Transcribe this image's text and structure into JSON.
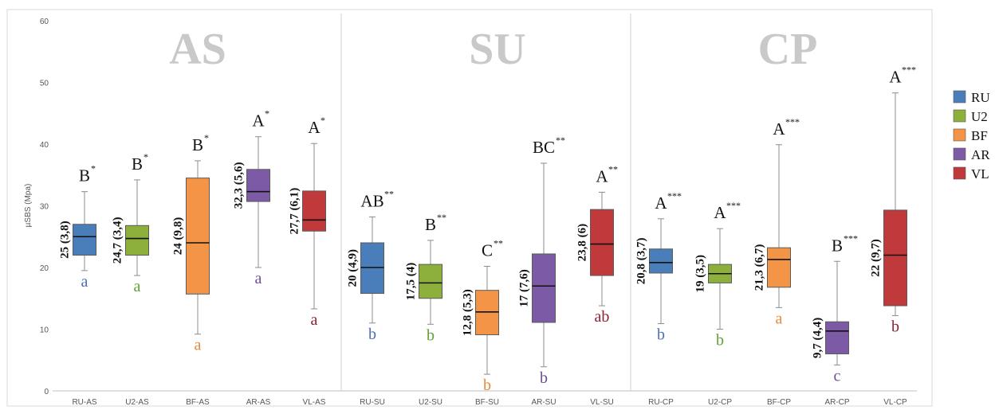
{
  "chart_data": {
    "type": "boxplot",
    "ylabel": "µSBS (Mpa)",
    "ylim": [
      0,
      60
    ],
    "yticks": [
      0,
      10,
      20,
      30,
      40,
      50,
      60
    ],
    "groups": [
      "AS",
      "SU",
      "CP"
    ],
    "legend": {
      "placement": "right",
      "entries": [
        {
          "name": "RU",
          "color": "#4a7ebb"
        },
        {
          "name": "U2",
          "color": "#8db03d"
        },
        {
          "name": "BF",
          "color": "#f39447"
        },
        {
          "name": "AR",
          "color": "#7d5aa6"
        },
        {
          "name": "VL",
          "color": "#c0393b"
        }
      ]
    },
    "boxes": [
      {
        "label": "RU-AS",
        "color": "#4a7ebb",
        "whisker_low": 19.5,
        "q1": 22,
        "median": 25,
        "q3": 27,
        "whisker_high": 32.3,
        "stat": "25 (3,8)",
        "upper_letter": "B",
        "stars": "*",
        "lower_letter": "a",
        "lower_color": "#4a6fb8"
      },
      {
        "label": "U2-AS",
        "color": "#8db03d",
        "whisker_low": 18.7,
        "q1": 22,
        "median": 24.7,
        "q3": 26.8,
        "whisker_high": 34.2,
        "stat": "24,7 (3,4)",
        "upper_letter": "B",
        "stars": "*",
        "lower_letter": "a",
        "lower_color": "#5fa133"
      },
      {
        "label": "BF-AS",
        "color": "#f39447",
        "whisker_low": 9.2,
        "q1": 15.7,
        "median": 24,
        "q3": 34.5,
        "whisker_high": 37.3,
        "stat": "24 (9,8)",
        "upper_letter": "B",
        "stars": "*",
        "lower_letter": "a",
        "lower_color": "#e88a3a"
      },
      {
        "label": "AR-AS",
        "color": "#7d5aa6",
        "whisker_low": 20,
        "q1": 30.7,
        "median": 32.3,
        "q3": 35.9,
        "whisker_high": 41.2,
        "stat": "32,3 (5,6)",
        "upper_letter": "A",
        "stars": "*",
        "lower_letter": "a",
        "lower_color": "#6d4f94"
      },
      {
        "label": "VL-AS",
        "color": "#c0393b",
        "whisker_low": 13.3,
        "q1": 25.9,
        "median": 27.7,
        "q3": 32.4,
        "whisker_high": 40.1,
        "stat": "27,7 (6,1)",
        "upper_letter": "A",
        "stars": "*",
        "lower_letter": "a",
        "lower_color": "#8b2332"
      },
      {
        "label": "RU-SU",
        "color": "#4a7ebb",
        "whisker_low": 11,
        "q1": 15.8,
        "median": 20,
        "q3": 24,
        "whisker_high": 28.2,
        "stat": "20 (4,9)",
        "upper_letter": "AB",
        "stars": "**",
        "lower_letter": "b",
        "lower_color": "#4a6fb8"
      },
      {
        "label": "U2-SU",
        "color": "#8db03d",
        "whisker_low": 10.8,
        "q1": 15,
        "median": 17.5,
        "q3": 20.5,
        "whisker_high": 24.4,
        "stat": "17,5 (4)",
        "upper_letter": "B",
        "stars": "**",
        "lower_letter": "b",
        "lower_color": "#5fa133"
      },
      {
        "label": "BF-SU",
        "color": "#f39447",
        "whisker_low": 2.7,
        "q1": 9.1,
        "median": 12.8,
        "q3": 16.3,
        "whisker_high": 20.2,
        "stat": "12,8 (5,3)",
        "upper_letter": "C",
        "stars": "**",
        "lower_letter": "b",
        "lower_color": "#e88a3a"
      },
      {
        "label": "AR-SU",
        "color": "#7d5aa6",
        "whisker_low": 3.9,
        "q1": 11.1,
        "median": 17,
        "q3": 22.2,
        "whisker_high": 36.9,
        "stat": "17 (7,6)",
        "upper_letter": "BC",
        "stars": "**",
        "lower_letter": "b",
        "lower_color": "#6d4f94"
      },
      {
        "label": "VL-SU",
        "color": "#c0393b",
        "whisker_low": 13.8,
        "q1": 18.7,
        "median": 23.8,
        "q3": 29.4,
        "whisker_high": 32.2,
        "stat": "23,8 (6)",
        "upper_letter": "A",
        "stars": "**",
        "lower_letter": "ab",
        "lower_color": "#8b2332"
      },
      {
        "label": "RU-CP",
        "color": "#4a7ebb",
        "whisker_low": 10.9,
        "q1": 19.1,
        "median": 20.8,
        "q3": 23,
        "whisker_high": 27.9,
        "stat": "20,8 (3,7)",
        "upper_letter": "A",
        "stars": "***",
        "lower_letter": "b",
        "lower_color": "#4a6fb8"
      },
      {
        "label": "U2-CP",
        "color": "#8db03d",
        "whisker_low": 10,
        "q1": 17.5,
        "median": 19,
        "q3": 20.5,
        "whisker_high": 26.3,
        "stat": "19 (3,5)",
        "upper_letter": "A",
        "stars": "***",
        "lower_letter": "b",
        "lower_color": "#5fa133"
      },
      {
        "label": "BF-CP",
        "color": "#f39447",
        "whisker_low": 13.5,
        "q1": 16.8,
        "median": 21.3,
        "q3": 23.2,
        "whisker_high": 39.9,
        "stat": "21,3 (6,7)",
        "upper_letter": "A",
        "stars": "***",
        "lower_letter": "a",
        "lower_color": "#e88a3a"
      },
      {
        "label": "AR-CP",
        "color": "#7d5aa6",
        "whisker_low": 4.2,
        "q1": 6,
        "median": 9.7,
        "q3": 11.2,
        "whisker_high": 21,
        "stat": "9,7 (4,4)",
        "upper_letter": "B",
        "stars": "***",
        "lower_letter": "c",
        "lower_color": "#6d4f94"
      },
      {
        "label": "VL-CP",
        "color": "#c0393b",
        "whisker_low": 12.2,
        "q1": 13.8,
        "median": 22,
        "q3": 29.3,
        "whisker_high": 48.3,
        "stat": "22 (9,7)",
        "upper_letter": "A",
        "stars": "***",
        "lower_letter": "b",
        "lower_color": "#8b2332"
      }
    ]
  }
}
